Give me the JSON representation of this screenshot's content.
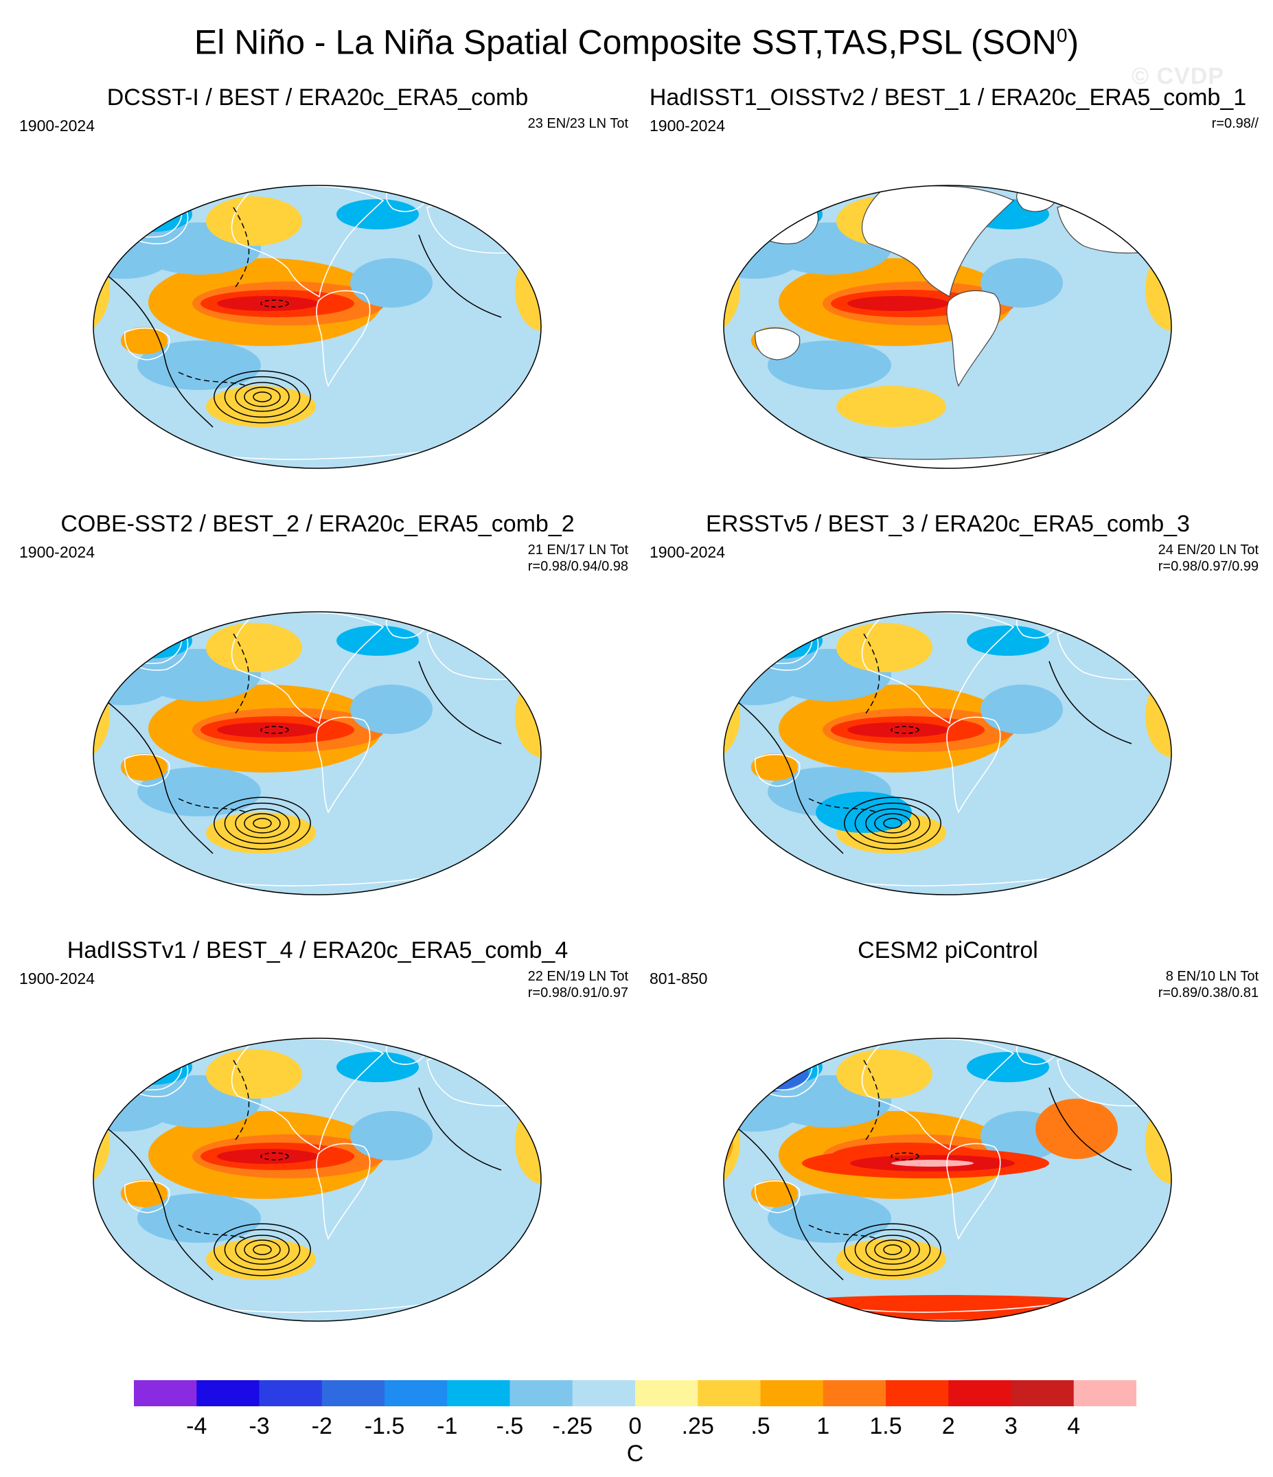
{
  "figure": {
    "title": "El Niño - La Niña Spatial Composite SST,TAS,PSL (SON",
    "title_superscript": "0",
    "title_suffix": ")",
    "watermark": "© CVDP"
  },
  "panels": [
    {
      "title": "DCSST-I / BEST / ERA20c_ERA5_comb",
      "period": "1900-2024",
      "stats_line1": "23 EN/23 LN Tot",
      "stats_line2": "",
      "land_masked": false,
      "variant": 0
    },
    {
      "title": "HadISST1_OISSTv2 / BEST_1 / ERA20c_ERA5_comb_1",
      "period": "1900-2024",
      "stats_line1": "r=0.98//",
      "stats_line2": "",
      "land_masked": true,
      "variant": 1
    },
    {
      "title": "COBE-SST2 / BEST_2 / ERA20c_ERA5_comb_2",
      "period": "1900-2024",
      "stats_line1": "21 EN/17 LN Tot",
      "stats_line2": "r=0.98/0.94/0.98",
      "land_masked": false,
      "variant": 2
    },
    {
      "title": "ERSSTv5 / BEST_3 / ERA20c_ERA5_comb_3",
      "period": "1900-2024",
      "stats_line1": "24 EN/20 LN Tot",
      "stats_line2": "r=0.98/0.97/0.99",
      "land_masked": false,
      "variant": 3
    },
    {
      "title": "HadISSTv1 / BEST_4 / ERA20c_ERA5_comb_4",
      "period": "1900-2024",
      "stats_line1": "22 EN/19 LN Tot",
      "stats_line2": "r=0.98/0.91/0.97",
      "land_masked": false,
      "variant": 4
    },
    {
      "title": "CESM2 piControl",
      "period": "801-850",
      "stats_line1": "8 EN/10 LN Tot",
      "stats_line2": "r=0.89/0.38/0.81",
      "land_masked": false,
      "variant": 5
    }
  ],
  "colorbar": {
    "unit": "C",
    "labels": [
      "-4",
      "-3",
      "-2",
      "-1.5",
      "-1",
      "-.5",
      "-.25",
      "0",
      ".25",
      ".5",
      "1",
      "1.5",
      "2",
      "3",
      "4"
    ],
    "colors": [
      "#8a2be2",
      "#1a0ae6",
      "#2b3ee6",
      "#2f6be0",
      "#1e8cf0",
      "#00b4f0",
      "#7fc6ec",
      "#b4def2",
      "#fff59a",
      "#ffd23c",
      "#ffa500",
      "#ff7a14",
      "#ff3300",
      "#e60f0f",
      "#c81e1e",
      "#ffb4b4"
    ]
  }
}
